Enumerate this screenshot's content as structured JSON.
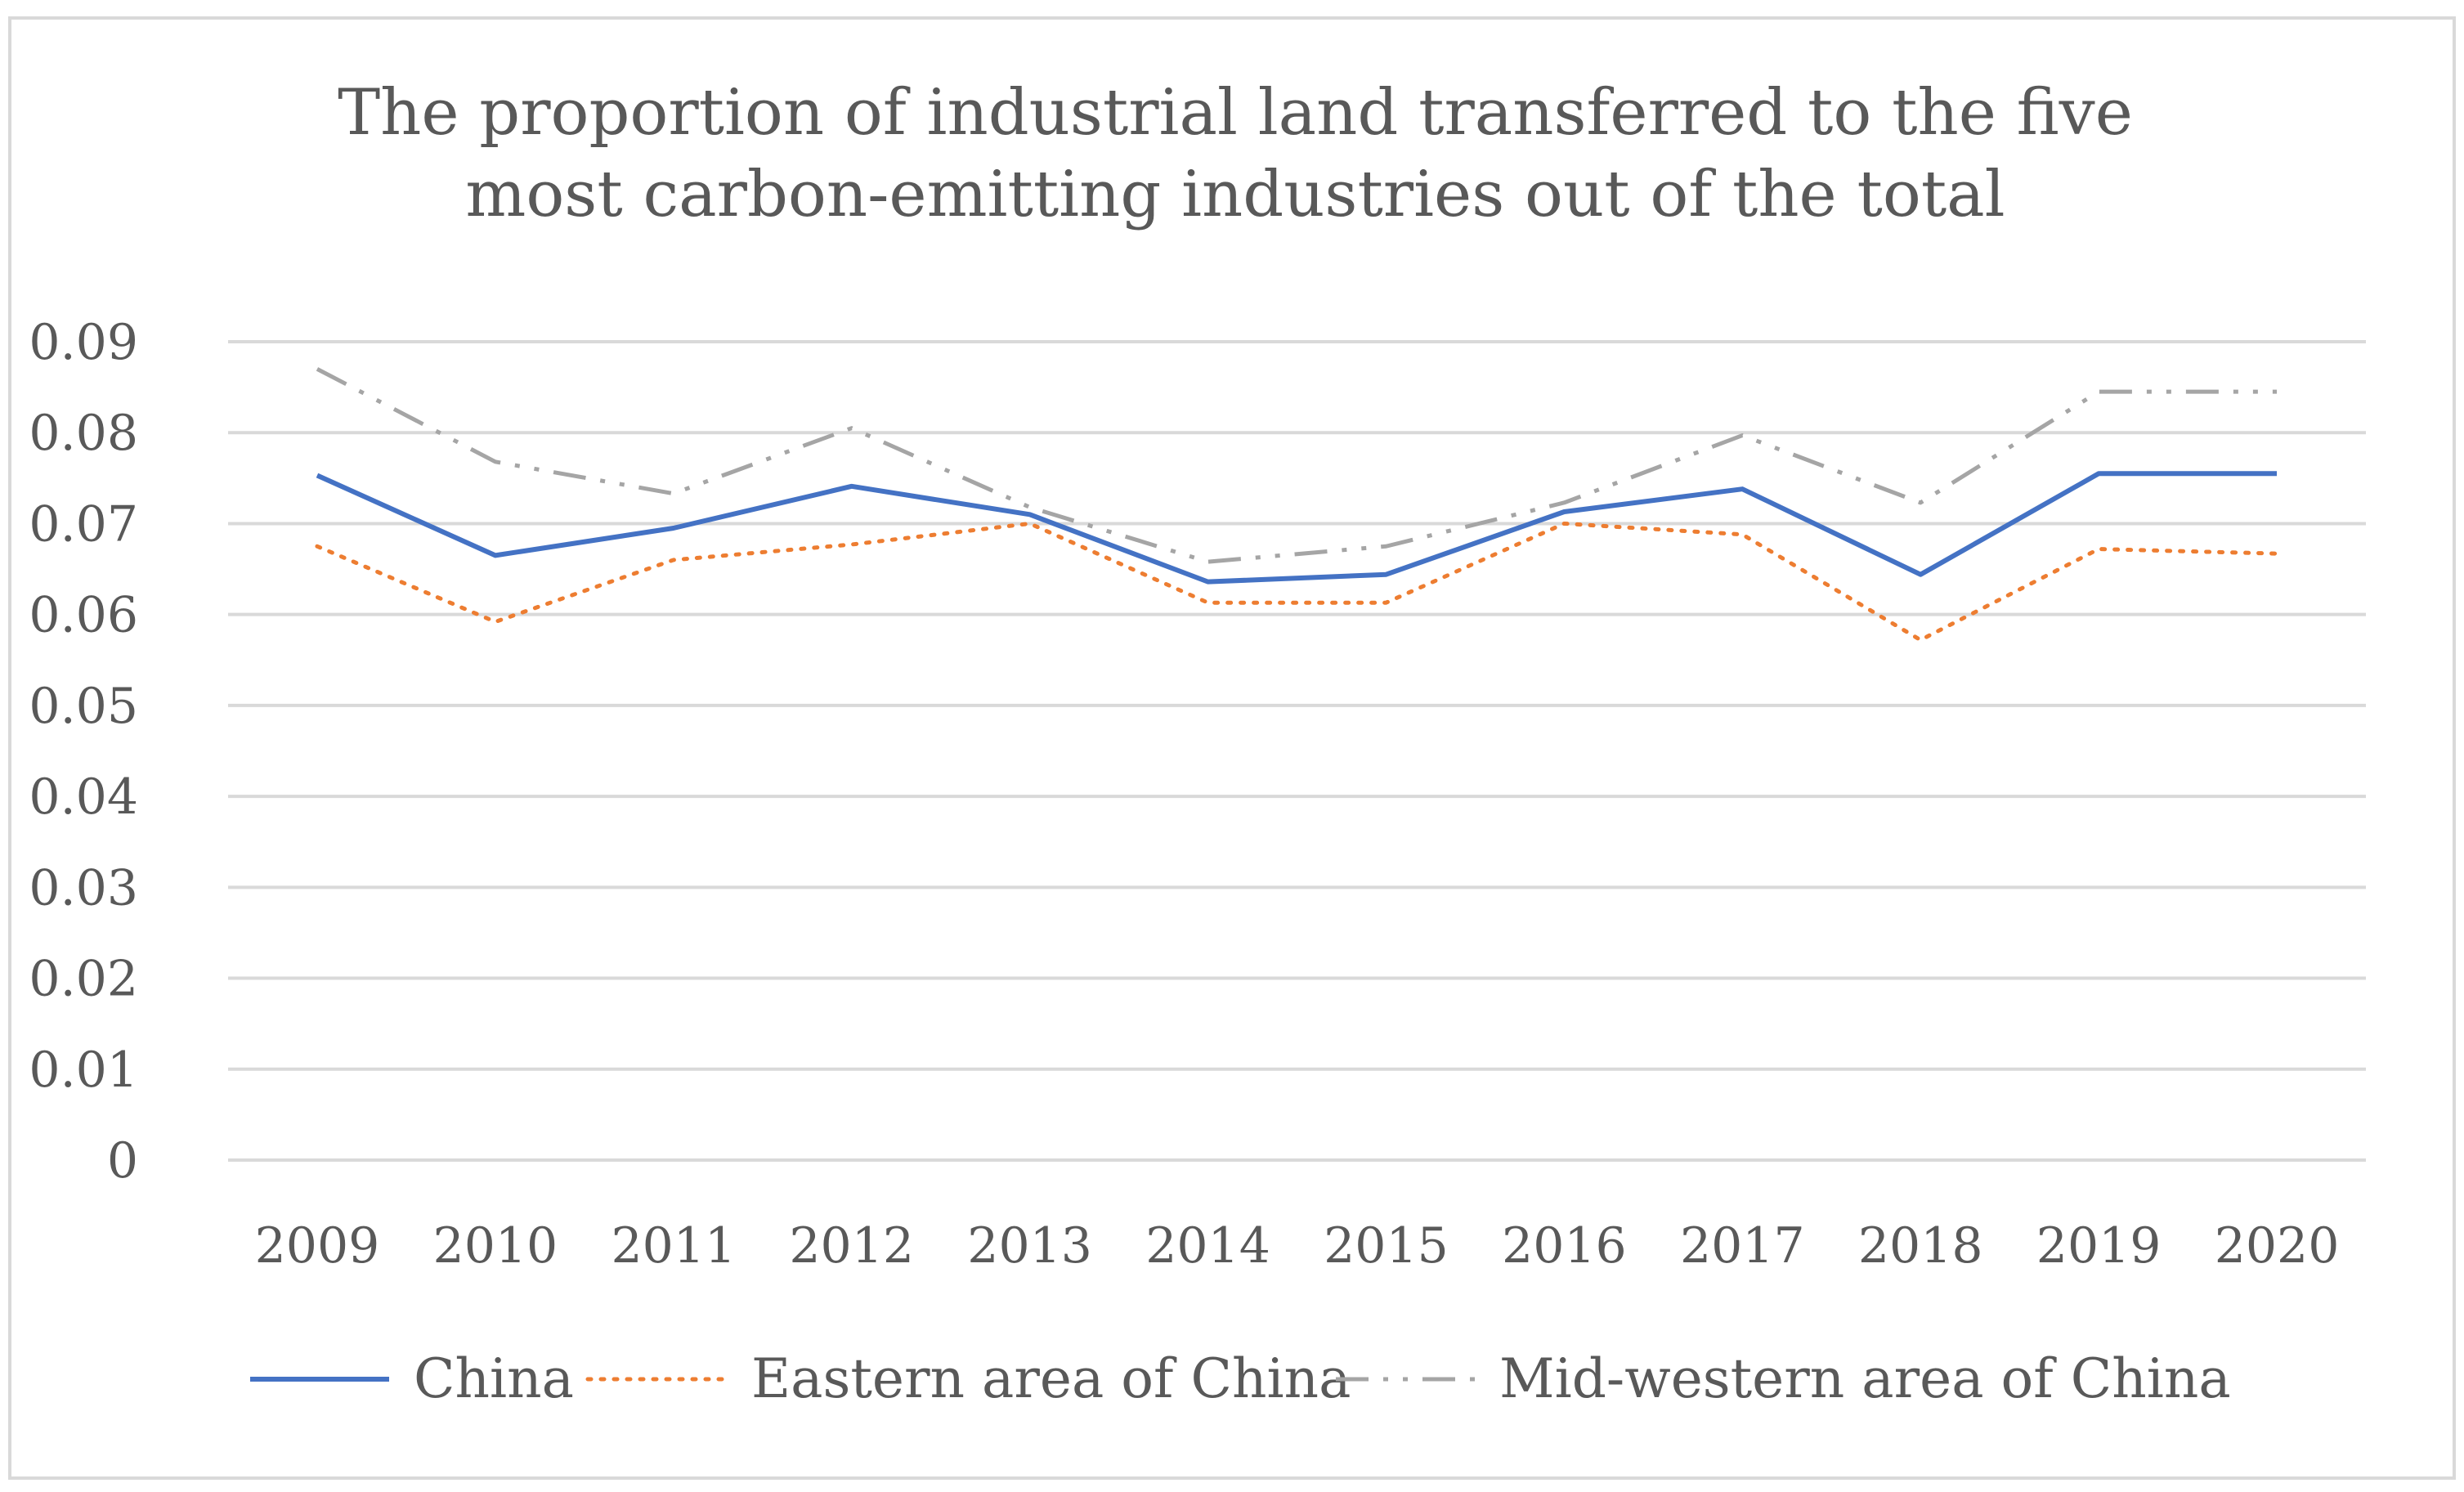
{
  "chart_data": {
    "type": "line",
    "title_lines": [
      "The proportion of industrial land transferred to the five",
      "most carbon-emitting industries out of the total"
    ],
    "categories": [
      "2009",
      "2010",
      "2011",
      "2012",
      "2013",
      "2014",
      "2015",
      "2016",
      "2017",
      "2018",
      "2019",
      "2020"
    ],
    "ylim": [
      0,
      0.09
    ],
    "yticks": [
      "0.09",
      "0.08",
      "0.07",
      "0.06",
      "0.05",
      "0.04",
      "0.03",
      "0.02",
      "0.01",
      "0"
    ],
    "grid": true,
    "legend_position": "bottom",
    "series": [
      {
        "name": "China",
        "color": "#4472c4",
        "dash": "solid",
        "values": [
          0.0753,
          0.0665,
          0.0695,
          0.0741,
          0.071,
          0.0636,
          0.0644,
          0.0713,
          0.0738,
          0.0644,
          0.0755,
          0.0755
        ]
      },
      {
        "name": "Eastern area of China",
        "color": "#ed7d31",
        "dash": "dotted",
        "values": [
          0.0675,
          0.0592,
          0.066,
          0.0677,
          0.07,
          0.0613,
          0.0613,
          0.07,
          0.0688,
          0.0572,
          0.0672,
          0.0667
        ]
      },
      {
        "name": "Mid-western area of China",
        "color": "#a5a5a5",
        "dash": "dash-dot-dot",
        "values": [
          0.087,
          0.0768,
          0.0733,
          0.0805,
          0.0718,
          0.0658,
          0.0675,
          0.0723,
          0.0797,
          0.0723,
          0.0845,
          0.0845
        ]
      }
    ]
  }
}
